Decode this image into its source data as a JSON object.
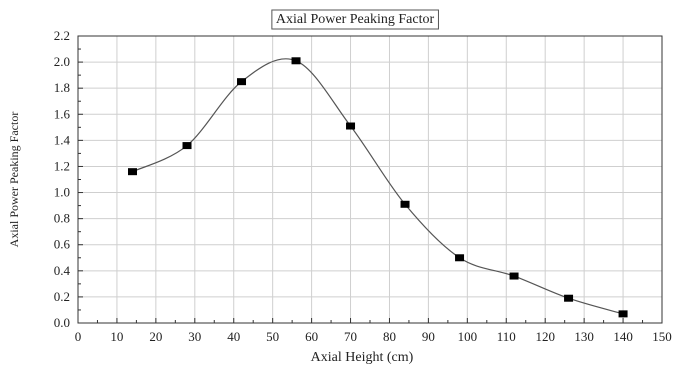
{
  "chart_data": {
    "type": "line",
    "title": "Axial Power Peaking Factor",
    "xlabel": "Axial Height (cm)",
    "ylabel": "Axial Power Peaking Factor",
    "xlim": [
      0,
      150
    ],
    "ylim": [
      0,
      2.2
    ],
    "x_ticks": [
      0,
      10,
      20,
      30,
      40,
      50,
      60,
      70,
      80,
      90,
      100,
      110,
      120,
      130,
      140,
      150
    ],
    "x_tick_labels": [
      "0",
      "10",
      "20",
      "30",
      "40",
      "50",
      "60",
      "70",
      "80",
      "90",
      "100",
      "110",
      "120",
      "130",
      "140",
      "150"
    ],
    "y_ticks": [
      0,
      0.2,
      0.4,
      0.6,
      0.8,
      1.0,
      1.2,
      1.4,
      1.6,
      1.8,
      2.0,
      2.2
    ],
    "y_tick_labels": [
      "0.0",
      "0.2",
      "0.4",
      "0.6",
      "0.8",
      "1.0",
      "1.2",
      "1.4",
      "1.6",
      "1.8",
      "2.0",
      "2.2"
    ],
    "grid": true,
    "series": [
      {
        "marker": "square",
        "color": "#000000",
        "x": [
          14,
          28,
          42,
          56,
          70,
          84,
          98,
          112,
          126,
          140
        ],
        "y": [
          1.16,
          1.36,
          1.85,
          2.01,
          1.51,
          0.91,
          0.5,
          0.36,
          0.19,
          0.07
        ]
      }
    ]
  }
}
